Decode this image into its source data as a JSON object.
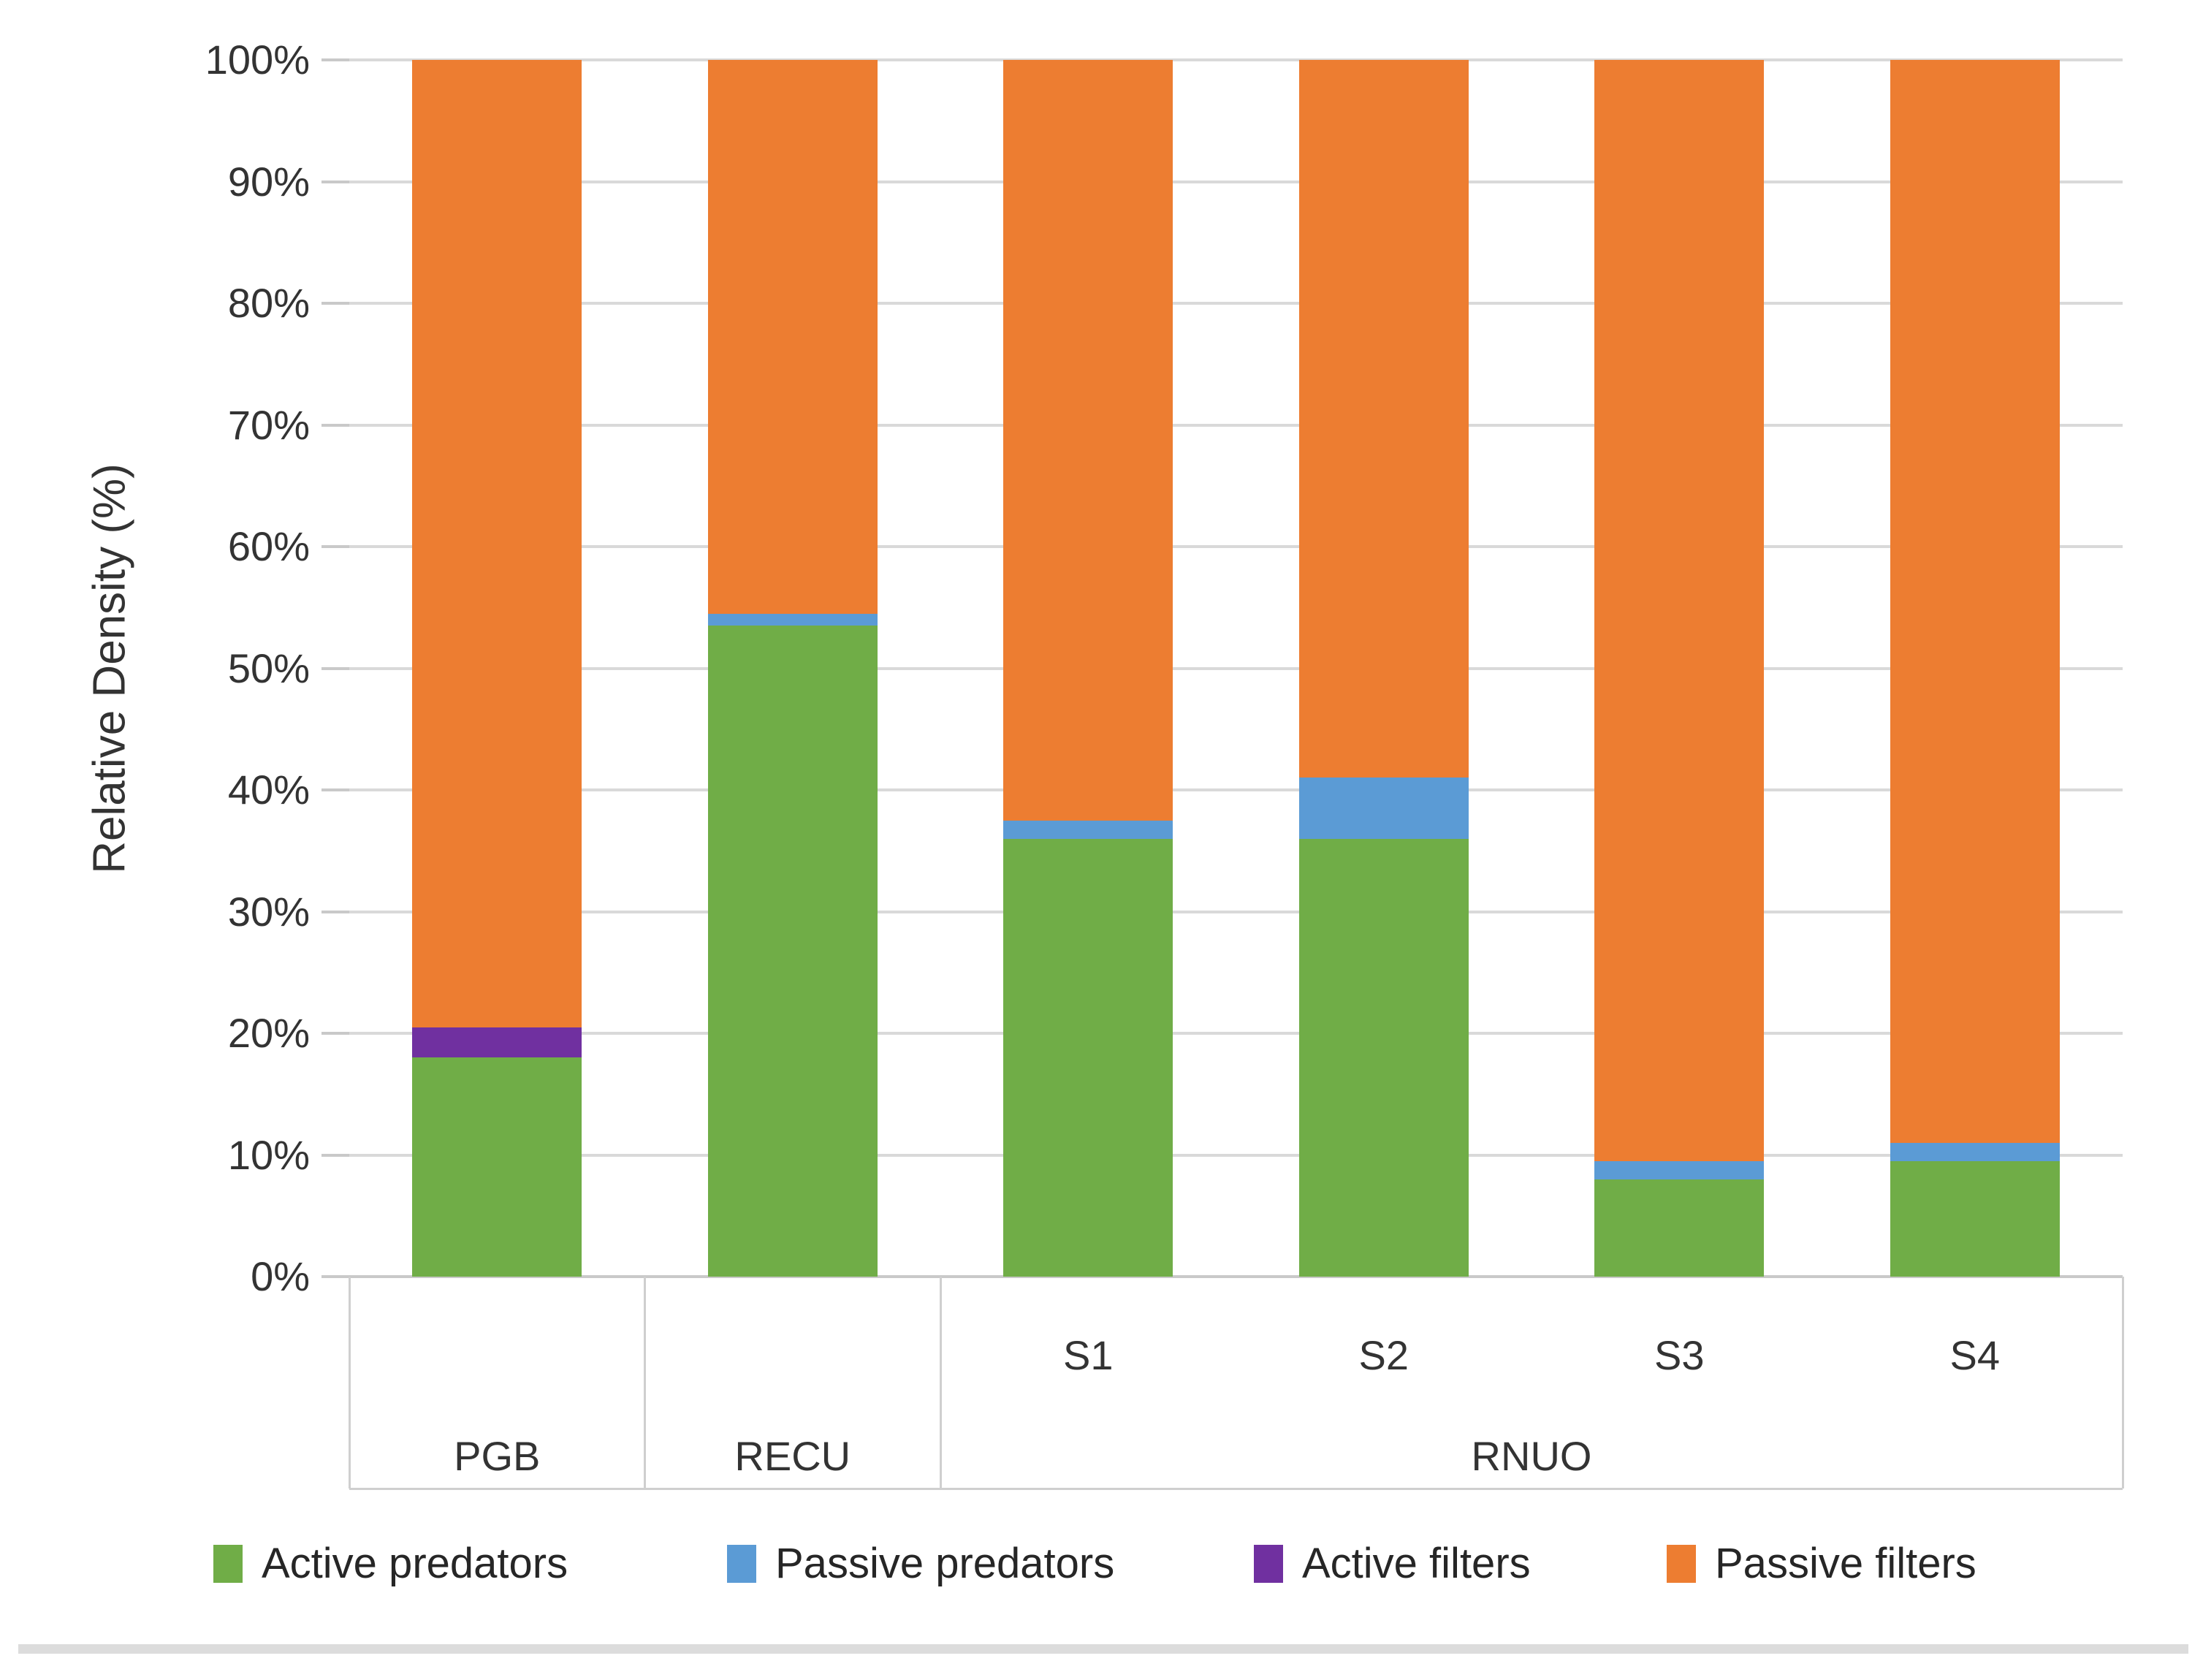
{
  "chart_data": {
    "type": "bar",
    "stacked": true,
    "title": "",
    "ylabel": "Relative Density (%)",
    "xlabel": "",
    "ylim": [
      0,
      100
    ],
    "grid": true,
    "legend_position": "bottom",
    "y_ticks": [
      "0%",
      "10%",
      "20%",
      "30%",
      "40%",
      "50%",
      "60%",
      "70%",
      "80%",
      "90%",
      "100%"
    ],
    "categories": [
      "PGB",
      "RECU",
      "S1",
      "S2",
      "S3",
      "S4"
    ],
    "x_axis": {
      "sub_labels": [
        "",
        "",
        "S1",
        "S2",
        "S3",
        "S4"
      ],
      "groups": [
        {
          "label": "PGB",
          "span": 1
        },
        {
          "label": "RECU",
          "span": 1
        },
        {
          "label": "RNUO",
          "span": 4
        }
      ]
    },
    "series": [
      {
        "name": "Active predators",
        "color": "#70AD47",
        "values": [
          18,
          53.5,
          36,
          36,
          8,
          9.5
        ]
      },
      {
        "name": "Passive predators",
        "color": "#5B9BD5",
        "values": [
          0,
          1,
          1.5,
          5,
          1.5,
          1.5
        ]
      },
      {
        "name": "Active filters",
        "color": "#7030A0",
        "values": [
          2.5,
          0,
          0,
          0,
          0,
          0
        ]
      },
      {
        "name": "Passive filters",
        "color": "#ED7D31",
        "values": [
          79.5,
          45.5,
          62.5,
          59,
          90.5,
          89
        ]
      }
    ],
    "colors": {
      "grid": "#D9D9D9",
      "axis": "#C9C9C9",
      "text": "#3F3F3F"
    }
  }
}
